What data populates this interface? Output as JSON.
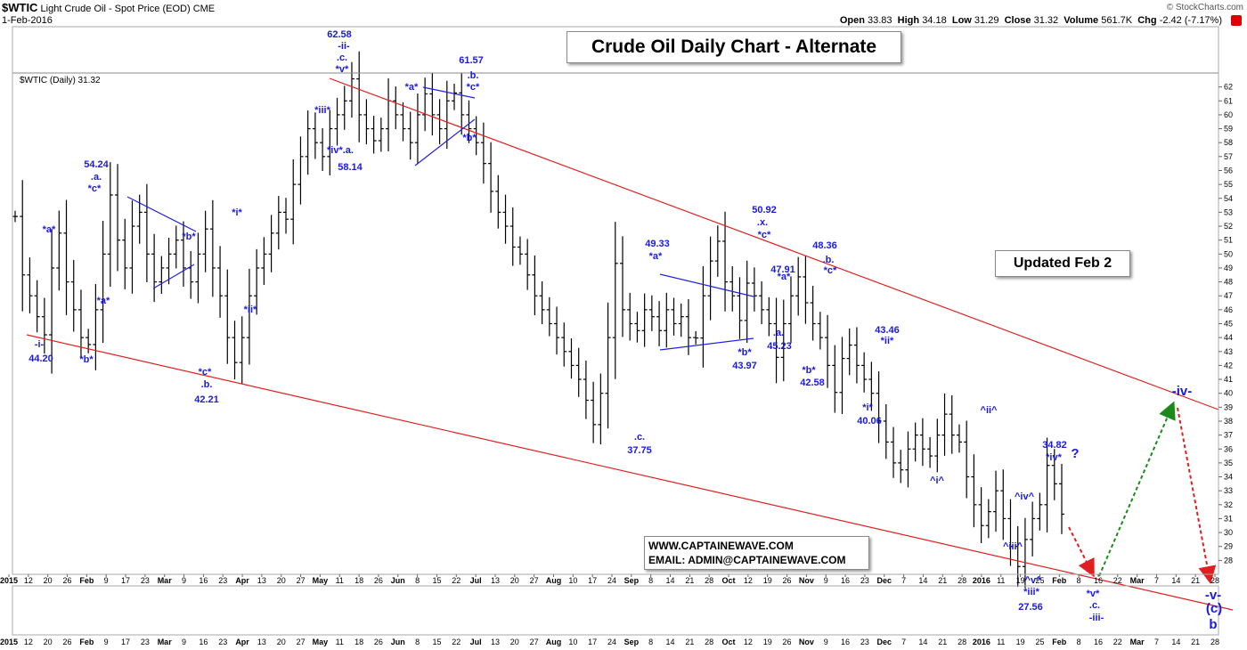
{
  "header": {
    "symbol": "$WTIC",
    "name": "Light Crude Oil - Spot Price (EOD)",
    "exchange": "CME",
    "date": "1-Feb-2016",
    "open_label": "Open",
    "open": "33.83",
    "high_label": "High",
    "high": "34.18",
    "low_label": "Low",
    "low": "31.29",
    "close_label": "Close",
    "close": "31.32",
    "volume_label": "Volume",
    "volume": "561.7K",
    "chg_label": "Chg",
    "chg": "-2.42 (-7.17%)",
    "watermark": "© StockCharts.com",
    "legend": "$WTIC (Daily) 31.32"
  },
  "title": "Crude Oil Daily Chart - Alternate",
  "updated": "Updated Feb 2",
  "contact": {
    "web": "WWW.CAPTAINEWAVE.COM",
    "email": "EMAIL: ADMIN@CAPTAINEWAVE.COM"
  },
  "colors": {
    "bars": "#000000",
    "channel": "#e02020",
    "triangle": "#2020e0",
    "labels": "#1a1adf",
    "arrow_up": "#1a8a1a",
    "arrow_down": "#e02020"
  },
  "chart_data": {
    "type": "ohlc",
    "title": "Crude Oil Daily Chart - Alternate",
    "ylim": [
      27,
      63
    ],
    "y_ticks": [
      28,
      29,
      30,
      31,
      32,
      33,
      34,
      35,
      36,
      37,
      38,
      39,
      40,
      41,
      42,
      43,
      44,
      45,
      46,
      47,
      48,
      49,
      50,
      51,
      52,
      53,
      54,
      55,
      56,
      57,
      58,
      59,
      60,
      61,
      62
    ],
    "x_tick_labels": [
      "2015",
      "12",
      "20",
      "26",
      "Feb",
      "9",
      "17",
      "23",
      "Mar",
      "9",
      "16",
      "23",
      "Apr",
      "13",
      "20",
      "27",
      "May",
      "11",
      "18",
      "26",
      "Jun",
      "8",
      "15",
      "22",
      "Jul",
      "13",
      "20",
      "27",
      "Aug",
      "10",
      "17",
      "24",
      "Sep",
      "8",
      "14",
      "21",
      "28",
      "Oct",
      "12",
      "19",
      "26",
      "Nov",
      "9",
      "16",
      "23",
      "Dec",
      "7",
      "14",
      "21",
      "28",
      "2016",
      "11",
      "19",
      "25",
      "Feb",
      "8",
      "16",
      "22",
      "Mar",
      "7",
      "14",
      "21",
      "28"
    ],
    "price_path_close": [
      52.7,
      48.5,
      47,
      45.5,
      44.2,
      49,
      51.5,
      48,
      46,
      44,
      43.5,
      46,
      50,
      54.24,
      51,
      49,
      52,
      53,
      50,
      48,
      49,
      50,
      51,
      49,
      48,
      50,
      51.8,
      49,
      47,
      44,
      42.21,
      44,
      47,
      49,
      50,
      51.5,
      53,
      52.5,
      55,
      57,
      59,
      58,
      57,
      59,
      60,
      61,
      62.58,
      60,
      59,
      58.14,
      59,
      61,
      60,
      59,
      58,
      60,
      61.5,
      60,
      59,
      61,
      61.57,
      60,
      59,
      58,
      56.5,
      54.5,
      53,
      52,
      50.5,
      50,
      48.5,
      47,
      46,
      45,
      44,
      43,
      42,
      41,
      39.5,
      37.75,
      40,
      44,
      49.33,
      46,
      45,
      44.5,
      46,
      45.5,
      44.5,
      46,
      45,
      45.5,
      44,
      43.97,
      47,
      49.5,
      50.92,
      48,
      47,
      45.23,
      47.91,
      47,
      46,
      45,
      42.58,
      45,
      47,
      48.36,
      46.5,
      45,
      44,
      42,
      40.06,
      42.5,
      43.46,
      42,
      41,
      40,
      38,
      36.5,
      35,
      34.5,
      36,
      37,
      36,
      35.5,
      37,
      38.5,
      37,
      36.5,
      34,
      32,
      30.5,
      31.5,
      33,
      31,
      29,
      27.56,
      29.5,
      31,
      32,
      34.82,
      33.5,
      31.32
    ],
    "annotations": [
      {
        "text": "62.58"
      },
      {
        "text": "-ii-"
      },
      {
        "text": ".c."
      },
      {
        "text": "*v*"
      },
      {
        "text": "61.57"
      },
      {
        "text": ".b."
      },
      {
        "text": "*c*"
      },
      {
        "text": "54.24"
      },
      {
        "text": ".a."
      },
      {
        "text": "*c*"
      },
      {
        "text": "*a*"
      },
      {
        "text": "*b*"
      },
      {
        "text": "*a*"
      },
      {
        "text": "*b*"
      },
      {
        "text": "-i-"
      },
      {
        "text": "44.20"
      },
      {
        "text": "*c*"
      },
      {
        "text": ".b."
      },
      {
        "text": "42.21"
      },
      {
        "text": "*i*"
      },
      {
        "text": "*ii*"
      },
      {
        "text": "*iii*"
      },
      {
        "text": "*iv*.a."
      },
      {
        "text": "58.14"
      },
      {
        "text": "*a*"
      },
      {
        "text": "*b*"
      },
      {
        "text": "49.33"
      },
      {
        "text": "*a*"
      },
      {
        "text": ".c."
      },
      {
        "text": "37.75"
      },
      {
        "text": "*b*"
      },
      {
        "text": "43.97"
      },
      {
        "text": "50.92"
      },
      {
        "text": ".x."
      },
      {
        "text": "*c*"
      },
      {
        "text": "47.91"
      },
      {
        "text": "*a*"
      },
      {
        "text": ".a."
      },
      {
        "text": "45.23"
      },
      {
        "text": "48.36"
      },
      {
        "text": ".b."
      },
      {
        "text": "*c*"
      },
      {
        "text": "*b*"
      },
      {
        "text": "42.58"
      },
      {
        "text": "43.46"
      },
      {
        "text": "*ii*"
      },
      {
        "text": "*i*"
      },
      {
        "text": "40.06"
      },
      {
        "text": "^ii^"
      },
      {
        "text": "^i^"
      },
      {
        "text": "^iv^"
      },
      {
        "text": "^iii^"
      },
      {
        "text": "^v^"
      },
      {
        "text": "*iii*"
      },
      {
        "text": "27.56"
      },
      {
        "text": "34.82"
      },
      {
        "text": "*iv*"
      },
      {
        "text": "?"
      },
      {
        "text": "*v*"
      },
      {
        "text": ".c."
      },
      {
        "text": "-iii-"
      },
      {
        "text": "-iv-"
      },
      {
        "text": "-v-"
      },
      {
        "text": "(c)"
      },
      {
        "text": "b"
      }
    ]
  }
}
